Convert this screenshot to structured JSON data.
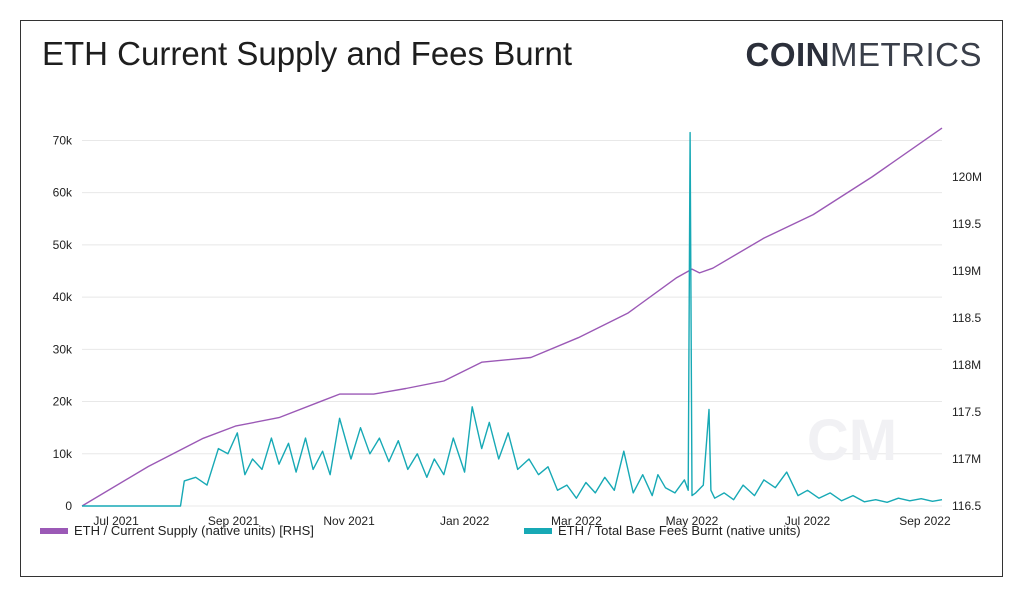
{
  "header": {
    "title": "ETH Current Supply and Fees Burnt",
    "logo_bold": "COIN",
    "logo_light": "METRICS"
  },
  "colors": {
    "supply": "#9b59b6",
    "fees": "#17a9b5",
    "grid": "#e8e8e8"
  },
  "legend": {
    "supply": "ETH / Current Supply (native units) [RHS]",
    "fees": "ETH / Total Base Fees Burnt (native units)"
  },
  "chart_data": {
    "type": "line",
    "title": "ETH Current Supply and Fees Burnt",
    "x_ticks": [
      "Jul 2021",
      "Sep 2021",
      "Nov 2021",
      "Jan 2022",
      "Mar 2022",
      "May 2022",
      "Jul 2022",
      "Sep 2022"
    ],
    "x_range": [
      "2021-06-13",
      "2022-09-10"
    ],
    "y_left": {
      "ticks": [
        0,
        10000,
        20000,
        30000,
        40000,
        50000,
        60000,
        70000
      ],
      "tick_labels": [
        "0",
        "10k",
        "20k",
        "30k",
        "40k",
        "50k",
        "60k",
        "70k"
      ],
      "range": [
        0,
        72000
      ]
    },
    "y_right": {
      "ticks": [
        116.5,
        117,
        117.5,
        118,
        118.5,
        119,
        119.5,
        120
      ],
      "tick_labels": [
        "116.5",
        "117M",
        "117.5",
        "118M",
        "118.5",
        "119M",
        "119.5",
        "120M"
      ],
      "range": [
        116.5,
        120.5
      ]
    },
    "grid": true,
    "series": [
      {
        "name": "ETH / Current Supply (native units) [RHS]",
        "axis": "right",
        "x": [
          "2021-06-13",
          "2021-07-18",
          "2021-08-16",
          "2021-09-02",
          "2021-09-25",
          "2021-10-18",
          "2021-10-27",
          "2021-11-14",
          "2021-12-01",
          "2021-12-21",
          "2022-01-10",
          "2022-02-05",
          "2022-03-02",
          "2022-03-28",
          "2022-04-23",
          "2022-05-01",
          "2022-05-05",
          "2022-05-12",
          "2022-06-08",
          "2022-07-04",
          "2022-08-04",
          "2022-09-10"
        ],
        "y": [
          116.5,
          116.92,
          117.22,
          117.35,
          117.44,
          117.62,
          117.69,
          117.69,
          117.75,
          117.83,
          118.03,
          118.08,
          118.29,
          118.55,
          118.93,
          119.02,
          118.98,
          119.03,
          119.35,
          119.6,
          120.0,
          120.52
        ]
      },
      {
        "name": "ETH / Total Base Fees Burnt (native units)",
        "axis": "left",
        "x": [
          "2021-06-13",
          "2021-08-04",
          "2021-08-06",
          "2021-08-12",
          "2021-08-18",
          "2021-08-24",
          "2021-08-29",
          "2021-09-03",
          "2021-09-07",
          "2021-09-11",
          "2021-09-16",
          "2021-09-21",
          "2021-09-25",
          "2021-09-30",
          "2021-10-04",
          "2021-10-09",
          "2021-10-13",
          "2021-10-18",
          "2021-10-22",
          "2021-10-27",
          "2021-11-02",
          "2021-11-07",
          "2021-11-12",
          "2021-11-17",
          "2021-11-22",
          "2021-11-27",
          "2021-12-02",
          "2021-12-07",
          "2021-12-12",
          "2021-12-16",
          "2021-12-21",
          "2021-12-26",
          "2022-01-01",
          "2022-01-05",
          "2022-01-10",
          "2022-01-14",
          "2022-01-19",
          "2022-01-24",
          "2022-01-29",
          "2022-02-04",
          "2022-02-09",
          "2022-02-14",
          "2022-02-19",
          "2022-02-24",
          "2022-03-01",
          "2022-03-06",
          "2022-03-11",
          "2022-03-16",
          "2022-03-21",
          "2022-03-26",
          "2022-03-31",
          "2022-04-05",
          "2022-04-10",
          "2022-04-13",
          "2022-04-17",
          "2022-04-22",
          "2022-04-27",
          "2022-04-29",
          "2022-04-30",
          "2022-05-01",
          "2022-05-03",
          "2022-05-07",
          "2022-05-10",
          "2022-05-11",
          "2022-05-13",
          "2022-05-18",
          "2022-05-23",
          "2022-05-28",
          "2022-06-03",
          "2022-06-08",
          "2022-06-14",
          "2022-06-20",
          "2022-06-26",
          "2022-07-01",
          "2022-07-07",
          "2022-07-13",
          "2022-07-19",
          "2022-07-25",
          "2022-07-31",
          "2022-08-06",
          "2022-08-12",
          "2022-08-18",
          "2022-08-24",
          "2022-08-30",
          "2022-09-05",
          "2022-09-10"
        ],
        "y": [
          0,
          0,
          4800,
          5500,
          4000,
          11000,
          10000,
          14000,
          6000,
          9000,
          7000,
          13000,
          8000,
          12000,
          6500,
          13000,
          7000,
          10500,
          6000,
          16800,
          9000,
          15000,
          10000,
          13000,
          8500,
          12500,
          7000,
          10000,
          5500,
          9000,
          6000,
          13000,
          6500,
          19000,
          11000,
          16000,
          9000,
          14000,
          7000,
          9000,
          6000,
          7500,
          3000,
          4000,
          1500,
          4500,
          2500,
          5500,
          3000,
          10500,
          2500,
          6000,
          2000,
          6000,
          3500,
          2500,
          5000,
          3000,
          71500,
          2000,
          2500,
          4000,
          18500,
          3000,
          1500,
          2500,
          1200,
          4000,
          2000,
          5000,
          3500,
          6500,
          2000,
          3000,
          1500,
          2500,
          1000,
          2000,
          800,
          1200,
          700,
          1500,
          1000,
          1400,
          900,
          1200
        ]
      }
    ]
  }
}
